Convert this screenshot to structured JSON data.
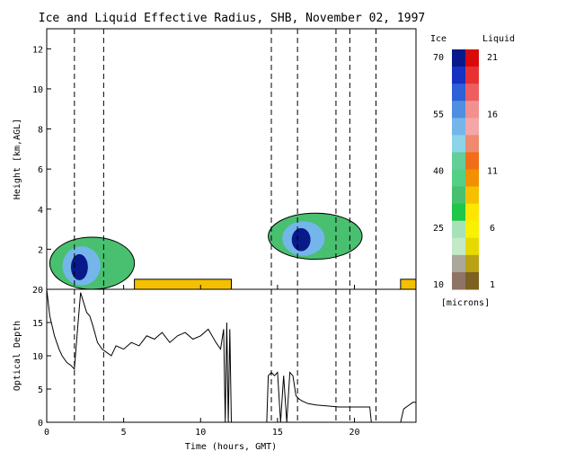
{
  "title": "Ice and Liquid Effective Radius, SHB, November 02, 1997",
  "colors": {
    "background": "#ffffff",
    "axes": "#000000",
    "ice_scale": [
      "#8f7466",
      "#aaa89a",
      "#c3eac8",
      "#a6e2b8",
      "#1fc648",
      "#48c070",
      "#53cf86",
      "#63ce98",
      "#8cd4e8",
      "#74b6ea",
      "#4f8fe0",
      "#2e60d8",
      "#1632c2",
      "#081a8a"
    ],
    "liquid_scale": [
      "#7d6120",
      "#b9a214",
      "#e6d900",
      "#f8f100",
      "#ffe600",
      "#f5c000",
      "#f29000",
      "#f26d18",
      "#ee8a6e",
      "#f5a6a6",
      "#f29090",
      "#ee5e5e",
      "#e83232",
      "#d80a0a"
    ]
  },
  "chart_data": [
    {
      "type": "heatmap",
      "panel": "top",
      "ylabel": "Height [km,AGL]",
      "xlim": [
        0,
        24
      ],
      "ylim": [
        0,
        13
      ],
      "xticks": [
        0,
        5,
        10,
        15,
        20
      ],
      "yticks": [
        2,
        4,
        6,
        8,
        10,
        12
      ],
      "vertical_dashed_lines_hours": [
        1.8,
        3.7,
        14.6,
        16.3,
        18.8,
        19.7,
        21.4
      ],
      "cloud_regions": [
        {
          "phase": "ice",
          "x": [
            0.2,
            5.7
          ],
          "y_range_km": [
            0.0,
            2.6
          ],
          "peak_radius_microns": 70
        },
        {
          "phase": "liquid",
          "x": [
            5.7,
            12.0
          ],
          "y_range_km": [
            0.0,
            0.5
          ],
          "radius_microns": 9
        },
        {
          "phase": "ice",
          "x": [
            14.4,
            20.5
          ],
          "y_range_km": [
            1.5,
            3.8
          ],
          "peak_radius_microns": 70
        },
        {
          "phase": "liquid",
          "x": [
            23.0,
            24.0
          ],
          "y_range_km": [
            0.0,
            0.5
          ],
          "radius_microns": 9
        }
      ],
      "colorbar": {
        "ice_label": "Ice",
        "liquid_label": "Liquid",
        "units": "[microns]",
        "ice_ticks": [
          "70",
          "55",
          "40",
          "25",
          "10"
        ],
        "liquid_ticks": [
          "21",
          "16",
          "11",
          "6",
          "1"
        ]
      }
    },
    {
      "type": "line",
      "panel": "bottom",
      "xlabel": "Time (hours, GMT)",
      "ylabel": "Optical Depth",
      "xlim": [
        0,
        24
      ],
      "ylim": [
        0,
        20
      ],
      "xticks": [
        0,
        5,
        10,
        15,
        20
      ],
      "yticks": [
        0,
        5,
        10,
        15,
        20
      ],
      "xticklabels": [
        "0",
        "5",
        "10",
        "15",
        "20"
      ],
      "yticklabels": [
        "0",
        "5",
        "10",
        "15",
        "20"
      ],
      "vertical_dashed_lines_hours": [
        1.8,
        3.7,
        14.6,
        16.3,
        18.8,
        19.7,
        21.4
      ],
      "series": [
        {
          "x": [
            0.0,
            0.2,
            0.5,
            0.8,
            1.0,
            1.3,
            1.6,
            1.8,
            2.0,
            2.2,
            2.4,
            2.6,
            2.8,
            3.0,
            3.3,
            3.6,
            3.9,
            4.2,
            4.5,
            5.0,
            5.5,
            6.0,
            6.5,
            7.0,
            7.5,
            8.0,
            8.5,
            9.0,
            9.5,
            10.0,
            10.5,
            11.0,
            11.3,
            11.5,
            11.6,
            11.7,
            11.8,
            11.9,
            12.0,
            14.3,
            14.4,
            14.6,
            14.8,
            15.0,
            15.2,
            15.4,
            15.6,
            15.8,
            16.0,
            16.2,
            16.4,
            16.6,
            16.8,
            17.0,
            17.5,
            18.0,
            18.5,
            19.0,
            19.5,
            20.0,
            20.5,
            21.0,
            21.1,
            23.0,
            23.2,
            23.5,
            23.8,
            24.0
          ],
          "y": [
            20.0,
            16.0,
            13.0,
            11.0,
            10.0,
            9.0,
            8.5,
            8.0,
            14.0,
            19.5,
            18.0,
            16.5,
            16.0,
            14.5,
            12.0,
            11.0,
            10.5,
            10.0,
            11.5,
            11.0,
            12.0,
            11.5,
            13.0,
            12.5,
            13.5,
            12.0,
            13.0,
            13.5,
            12.5,
            13.0,
            14.0,
            12.0,
            11.0,
            14.0,
            0.0,
            15.0,
            0.0,
            14.0,
            0.0,
            0.0,
            7.0,
            7.5,
            7.0,
            7.5,
            0.0,
            7.0,
            0.0,
            7.5,
            7.0,
            4.0,
            3.5,
            3.2,
            3.0,
            2.8,
            2.6,
            2.5,
            2.4,
            2.3,
            2.3,
            2.3,
            2.3,
            2.3,
            0.0,
            0.0,
            2.0,
            2.5,
            3.0,
            3.0
          ]
        }
      ]
    }
  ]
}
